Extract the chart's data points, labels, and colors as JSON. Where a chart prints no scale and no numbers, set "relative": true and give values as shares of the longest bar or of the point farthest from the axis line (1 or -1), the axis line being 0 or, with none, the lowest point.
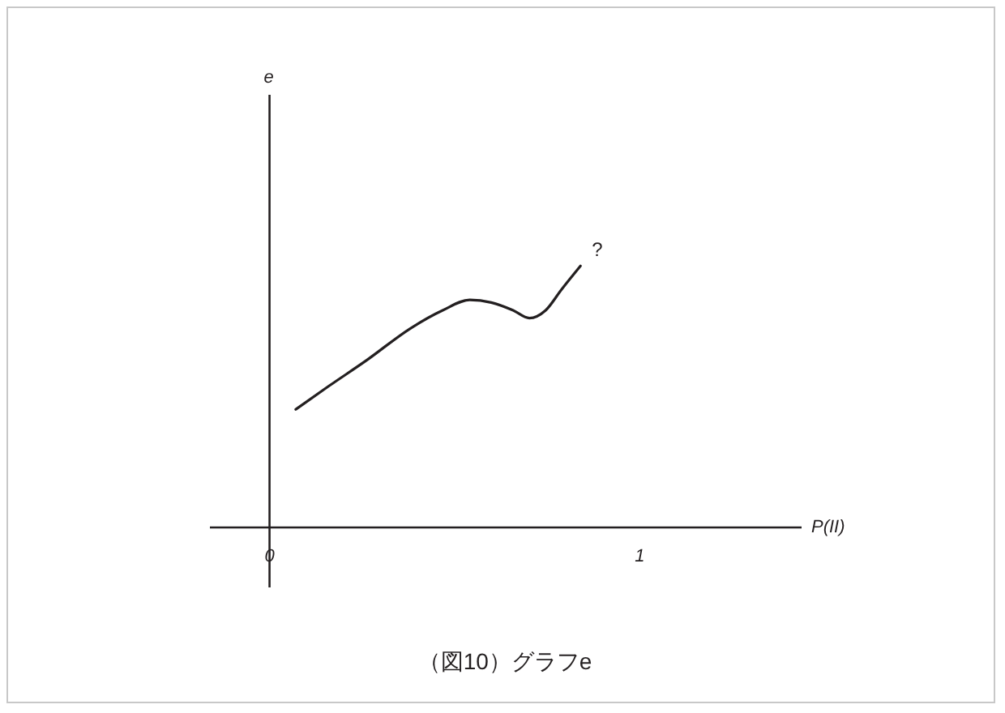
{
  "chart_data": {
    "type": "line",
    "title": "（図10）グラフe",
    "xlabel": "P(II)",
    "relative": true,
    "x": [
      0.073,
      0.163,
      0.266,
      0.382,
      0.47,
      0.543,
      0.601,
      0.66,
      0.704,
      0.748,
      0.791,
      0.842
    ],
    "series": [
      {
        "color": "#231f20",
        "values": [
          0.45,
          0.54,
          0.64,
          0.76,
          0.83,
          0.87,
          0.86,
          0.83,
          0.8,
          0.83,
          0.91,
          1
        ]
      }
    ],
    "xlim": [
      -0.161,
      1.437
    ],
    "xticks": [
      0,
      1
    ],
    "tick_labels": "x",
    "marker": "none",
    "line_style": "solid",
    "annotations": [
      "?",
      "e"
    ]
  }
}
